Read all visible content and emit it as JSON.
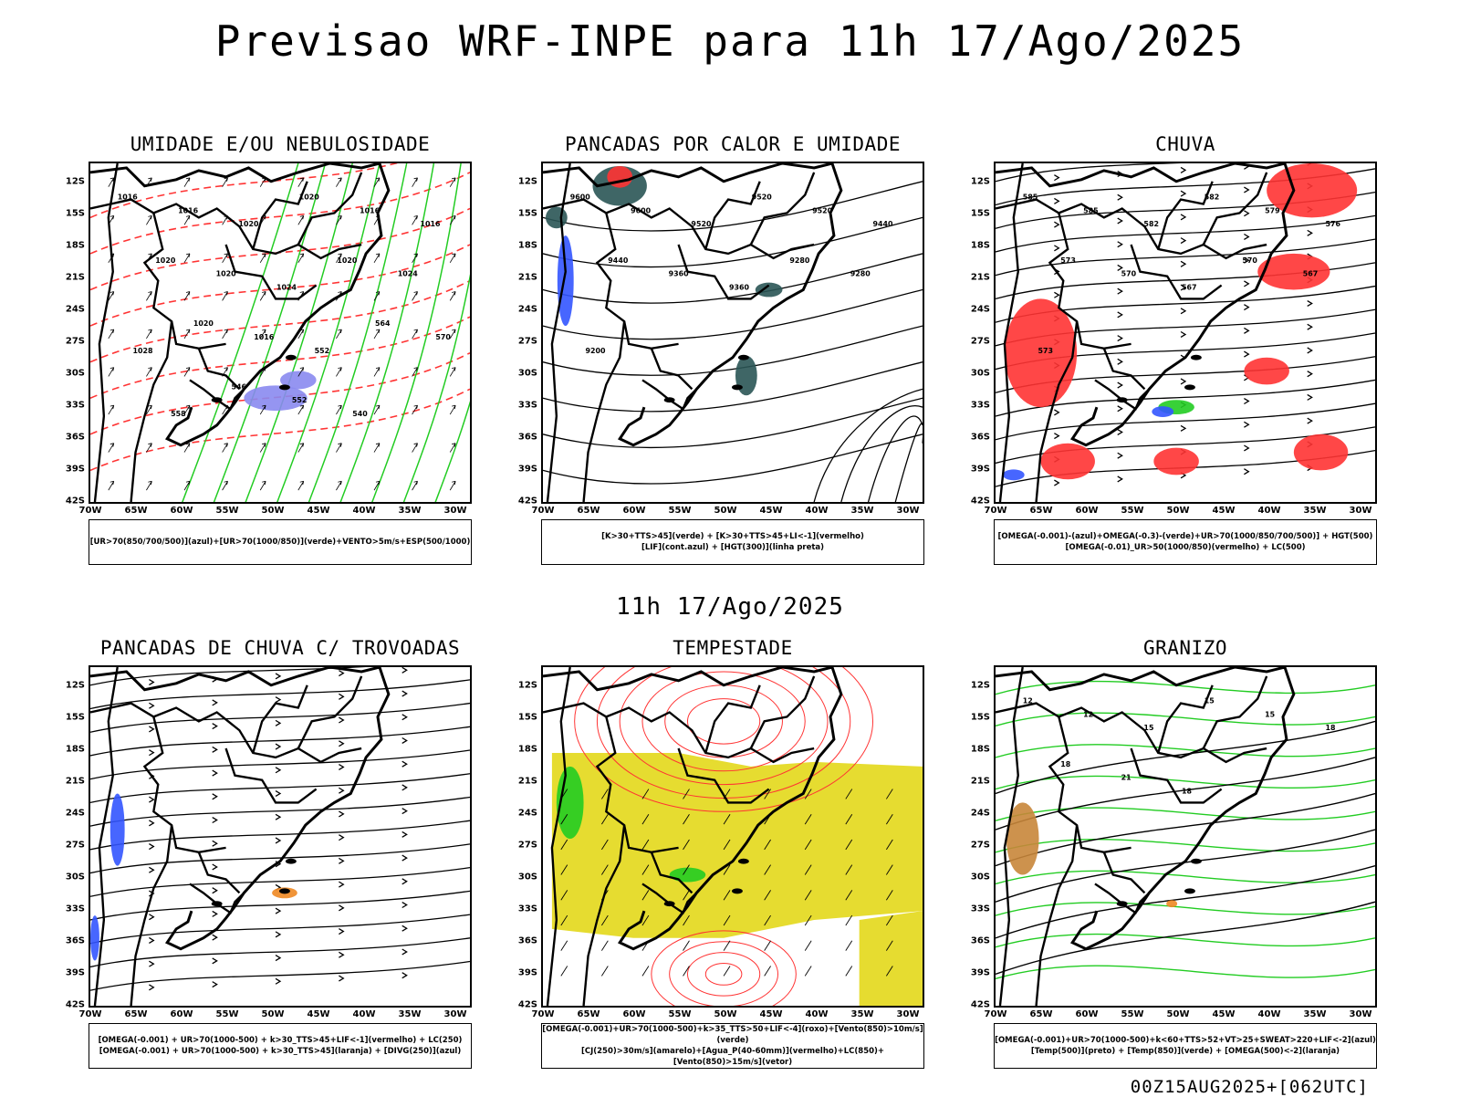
{
  "header": {
    "title": "Previsao WRF-INPE  para 11h 17/Ago/2025"
  },
  "middle_label": "11h 17/Ago/2025",
  "footer_label": "00Z15AUG2025+[062UTC]",
  "axes": {
    "lat_labels": [
      "12S",
      "15S",
      "18S",
      "21S",
      "24S",
      "27S",
      "30S",
      "33S",
      "36S",
      "39S",
      "42S"
    ],
    "lon_labels": [
      "70W",
      "65W",
      "60W",
      "55W",
      "50W",
      "45W",
      "40W",
      "35W",
      "30W"
    ]
  },
  "panels": [
    {
      "title": "UMIDADE E/OU NEBULOSIDADE",
      "legend_line1": "[UR>70(850/700/500)](azul)+[UR>70(1000/850)](verde)+VENTO>5m/s+ESP(500/1000)",
      "legend_line2": "",
      "contour_labels": [
        "1016",
        "1016",
        "1020",
        "1020",
        "1016",
        "1016",
        "1020",
        "1020",
        "1024",
        "1020",
        "1024",
        "1028",
        "1020",
        "1016",
        "552",
        "564",
        "570",
        "558",
        "546",
        "552",
        "540"
      ]
    },
    {
      "title": "PANCADAS POR CALOR E UMIDADE",
      "legend_line1": "[K>30+TTS>45](verde) + [K>30+TTS>45+LI<-1](vermelho)",
      "legend_line2": "[LIF](cont.azul) + [HGT(300)](linha preta)",
      "contour_labels": [
        "9600",
        "9600",
        "9520",
        "9520",
        "9520",
        "9440",
        "9440",
        "9360",
        "9360",
        "9280",
        "9280",
        "9200"
      ]
    },
    {
      "title": "CHUVA",
      "legend_line1": "[OMEGA(-0.001)-(azul)+OMEGA(-0.3)-(verde)+UR>70(1000/850/700/500)] + HGT(500)",
      "legend_line2": "[OMEGA(-0.01)_UR>50(1000/850)(vermelho) + LC(500)",
      "contour_labels": [
        "585",
        "585",
        "582",
        "582",
        "579",
        "576",
        "573",
        "570",
        "567",
        "570",
        "567",
        "573"
      ]
    },
    {
      "title": "PANCADAS DE CHUVA C/ TROVOADAS",
      "legend_line1": "[OMEGA(-0.001) + UR>70(1000-500) + k>30_TTS>45+LIF<-1](vermelho) + LC(250)",
      "legend_line2": "[OMEGA(-0.001) + UR>70(1000-500) + k>30_TTS>45](laranja) + [DIVG(250)](azul)",
      "contour_labels": []
    },
    {
      "title": "TEMPESTADE",
      "legend_line1": "[OMEGA(-0.001)+UR>70(1000-500)+k>35_TTS>50+LIF<-4](roxo)+[Vento(850)>10m/s](verde)",
      "legend_line2": "[CJ(250)>30m/s](amarelo)+[Agua_P(40-60mm)](vermelho)+LC(850)+[Vento(850)>15m/s](vetor)",
      "contour_labels": []
    },
    {
      "title": "GRANIZO",
      "legend_line1": "[OMEGA(-0.001)+UR>70(1000-500)+k<60+TTS>52+VT>25+SWEAT>220+LIF<-2](azul)",
      "legend_line2": "[Temp(500)](preto) + [Temp(850)](verde) + [OMEGA(500)<-2](laranja)",
      "contour_labels": [
        "12",
        "12",
        "15",
        "15",
        "15",
        "18",
        "18",
        "21",
        "18"
      ]
    }
  ],
  "colors": {
    "red": "#ff3333",
    "green": "#22cc22",
    "blue": "#3355ff",
    "yellow": "#e6dc30",
    "orange": "#ee8822",
    "darkteal": "#2a5555"
  }
}
